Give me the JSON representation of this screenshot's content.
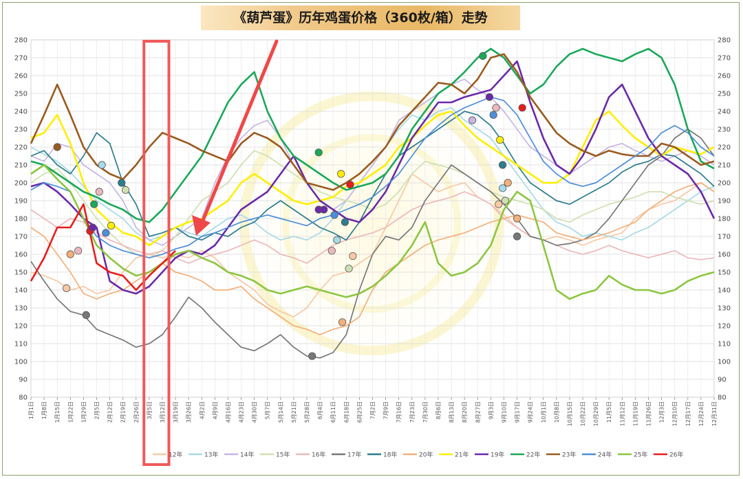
{
  "chart_data": {
    "type": "line",
    "title": "《葫芦蛋》历年鸡蛋价格（360枚/箱）走势",
    "xlabel": "",
    "ylabel": "",
    "ylim": [
      80,
      280
    ],
    "yticks": [
      80,
      90,
      100,
      110,
      120,
      130,
      140,
      150,
      160,
      170,
      180,
      190,
      200,
      210,
      220,
      230,
      240,
      250,
      260,
      270,
      280
    ],
    "x_tick_labels": [
      "1月1日",
      "1月8日",
      "1月15日",
      "1月22日",
      "1月29日",
      "2月5日",
      "2月12日",
      "2月19日",
      "2月26日",
      "3月5日",
      "3月12日",
      "3月19日",
      "3月26日",
      "4月2日",
      "4月9日",
      "4月16日",
      "4月23日",
      "4月30日",
      "5月7日",
      "5月14日",
      "5月21日",
      "5月28日",
      "6月4日",
      "6月11日",
      "6月18日",
      "6月25日",
      "7月2日",
      "7月9日",
      "7月16日",
      "7月23日",
      "7月30日",
      "8月6日",
      "8月13日",
      "8月20日",
      "8月27日",
      "9月3日",
      "9月10日",
      "9月17日",
      "9月24日",
      "10月1日",
      "10月8日",
      "10月15日",
      "10月22日",
      "10月29日",
      "11月5日",
      "11月12日",
      "11月19日",
      "11月26日",
      "12月3日",
      "12月10日",
      "12月17日",
      "12月24日",
      "12月31日"
    ],
    "legend_position": "bottom",
    "highlight_box": {
      "from_week": 8.6,
      "to_week": 10.5
    },
    "series": [
      {
        "name": "12年",
        "color": "#f7c9a6",
        "values": [
          150,
          148,
          145,
          140,
          142,
          138,
          140,
          150,
          158,
          160,
          158,
          160,
          158,
          162,
          158,
          150,
          145,
          140,
          132,
          128,
          125,
          130,
          140,
          148,
          150,
          155,
          160,
          175,
          190,
          205,
          200,
          195,
          198,
          200,
          192,
          188,
          182,
          175,
          170,
          168,
          170,
          168,
          165,
          168,
          170,
          172,
          180,
          185,
          188,
          190,
          195,
          200,
          195
        ]
      },
      {
        "name": "13年",
        "color": "#a9d9e6",
        "values": [
          220,
          216,
          212,
          206,
          198,
          190,
          185,
          180,
          172,
          168,
          170,
          175,
          172,
          170,
          175,
          180,
          182,
          178,
          172,
          168,
          170,
          168,
          172,
          180,
          190,
          200,
          210,
          220,
          230,
          238,
          235,
          240,
          242,
          235,
          230,
          225,
          215,
          205,
          195,
          185,
          178,
          175,
          170,
          172,
          170,
          168,
          172,
          175,
          180,
          185,
          190,
          195,
          198
        ]
      },
      {
        "name": "14年",
        "color": "#c8b6e2",
        "values": [
          215,
          212,
          222,
          220,
          210,
          205,
          200,
          190,
          175,
          168,
          165,
          170,
          175,
          180,
          200,
          215,
          225,
          232,
          235,
          225,
          210,
          200,
          190,
          185,
          190,
          200,
          210,
          220,
          235,
          240,
          245,
          250,
          255,
          258,
          252,
          248,
          240,
          230,
          220,
          215,
          210,
          205,
          210,
          215,
          220,
          222,
          218,
          215,
          212,
          215,
          218,
          215,
          210
        ]
      },
      {
        "name": "15年",
        "color": "#cfe0b0",
        "values": [
          200,
          205,
          208,
          200,
          190,
          180,
          172,
          165,
          160,
          158,
          162,
          170,
          180,
          190,
          195,
          200,
          210,
          218,
          215,
          210,
          205,
          200,
          195,
          192,
          190,
          188,
          185,
          188,
          195,
          205,
          212,
          210,
          208,
          205,
          200,
          195,
          192,
          190,
          188,
          185,
          180,
          178,
          182,
          185,
          188,
          190,
          192,
          195,
          195,
          192,
          190,
          188,
          190
        ]
      },
      {
        "name": "16年",
        "color": "#ebb9bd",
        "values": [
          185,
          180,
          175,
          180,
          178,
          172,
          168,
          165,
          162,
          160,
          162,
          158,
          155,
          158,
          160,
          162,
          165,
          168,
          165,
          160,
          158,
          155,
          160,
          165,
          168,
          170,
          172,
          175,
          180,
          185,
          188,
          190,
          192,
          195,
          192,
          188,
          180,
          175,
          170,
          168,
          165,
          162,
          160,
          162,
          165,
          162,
          160,
          158,
          160,
          162,
          158,
          157,
          158
        ]
      },
      {
        "name": "17年",
        "color": "#777777",
        "values": [
          156,
          145,
          135,
          128,
          126,
          118,
          115,
          112,
          108,
          110,
          115,
          125,
          136,
          130,
          122,
          115,
          108,
          106,
          110,
          115,
          108,
          103,
          102,
          105,
          115,
          140,
          160,
          170,
          168,
          175,
          190,
          200,
          210,
          205,
          200,
          195,
          188,
          180,
          170,
          168,
          165,
          166,
          168,
          172,
          180,
          190,
          200,
          210,
          215,
          225,
          230,
          225,
          215
        ]
      },
      {
        "name": "18年",
        "color": "#2e7d8c",
        "values": [
          215,
          218,
          210,
          205,
          215,
          228,
          222,
          200,
          188,
          170,
          172,
          175,
          170,
          168,
          172,
          170,
          175,
          178,
          185,
          190,
          185,
          180,
          175,
          172,
          168,
          178,
          192,
          205,
          215,
          220,
          225,
          230,
          235,
          240,
          238,
          232,
          222,
          210,
          200,
          195,
          190,
          188,
          192,
          196,
          200,
          206,
          210,
          212,
          216,
          215,
          210,
          205,
          198
        ]
      },
      {
        "name": "20年",
        "color": "#f3b07a",
        "values": [
          175,
          170,
          160,
          150,
          138,
          135,
          138,
          140,
          145,
          150,
          155,
          150,
          148,
          145,
          140,
          140,
          142,
          135,
          130,
          125,
          120,
          118,
          115,
          118,
          120,
          125,
          140,
          150,
          155,
          160,
          165,
          168,
          170,
          172,
          175,
          178,
          180,
          182,
          180,
          178,
          172,
          170,
          168,
          170,
          172,
          175,
          178,
          185,
          190,
          195,
          198,
          200,
          195
        ]
      },
      {
        "name": "21年",
        "color": "#ffee00",
        "values": [
          225,
          228,
          238,
          222,
          200,
          185,
          178,
          172,
          170,
          165,
          170,
          175,
          178,
          180,
          185,
          190,
          200,
          205,
          200,
          195,
          190,
          188,
          190,
          192,
          198,
          200,
          205,
          210,
          220,
          225,
          232,
          238,
          240,
          232,
          225,
          220,
          215,
          210,
          205,
          200,
          200,
          205,
          220,
          235,
          240,
          232,
          225,
          220,
          215,
          220,
          218,
          216,
          220
        ]
      },
      {
        "name": "19年",
        "color": "#6a2aa8",
        "values": [
          198,
          200,
          195,
          188,
          180,
          175,
          145,
          140,
          138,
          142,
          150,
          158,
          162,
          160,
          165,
          175,
          185,
          190,
          195,
          205,
          215,
          200,
          190,
          185,
          180,
          178,
          185,
          195,
          210,
          225,
          235,
          245,
          245,
          248,
          250,
          252,
          260,
          268,
          245,
          225,
          210,
          205,
          215,
          230,
          248,
          255,
          240,
          225,
          215,
          210,
          205,
          195,
          180
        ]
      },
      {
        "name": "22年",
        "color": "#1aa85a",
        "values": [
          212,
          210,
          205,
          200,
          195,
          192,
          188,
          185,
          180,
          178,
          185,
          195,
          205,
          215,
          230,
          245,
          255,
          262,
          240,
          225,
          215,
          210,
          205,
          200,
          196,
          198,
          200,
          205,
          215,
          230,
          240,
          250,
          255,
          262,
          270,
          275,
          270,
          260,
          250,
          255,
          265,
          272,
          275,
          272,
          270,
          268,
          272,
          275,
          270,
          255,
          230,
          212,
          208
        ]
      },
      {
        "name": "23年",
        "color": "#9a5a1e",
        "values": [
          222,
          238,
          255,
          238,
          220,
          210,
          205,
          202,
          210,
          220,
          228,
          225,
          222,
          218,
          215,
          212,
          222,
          228,
          225,
          220,
          210,
          200,
          198,
          196,
          200,
          205,
          212,
          220,
          232,
          240,
          248,
          256,
          255,
          250,
          258,
          270,
          272,
          262,
          248,
          238,
          228,
          222,
          218,
          215,
          218,
          216,
          215,
          215,
          222,
          220,
          215,
          210,
          212
        ]
      },
      {
        "name": "24年",
        "color": "#4d8ed8",
        "values": [
          196,
          200,
          198,
          195,
          180,
          170,
          165,
          162,
          160,
          158,
          160,
          163,
          165,
          170,
          172,
          175,
          178,
          180,
          182,
          180,
          178,
          176,
          180,
          182,
          185,
          188,
          192,
          198,
          205,
          215,
          225,
          232,
          238,
          242,
          245,
          248,
          246,
          238,
          225,
          212,
          205,
          200,
          198,
          200,
          205,
          210,
          215,
          220,
          228,
          232,
          228,
          220,
          215
        ]
      },
      {
        "name": "25年",
        "color": "#8cc63f",
        "values": [
          205,
          210,
          202,
          195,
          180,
          165,
          158,
          152,
          148,
          150,
          155,
          160,
          162,
          158,
          155,
          150,
          148,
          145,
          140,
          138,
          140,
          142,
          140,
          138,
          136,
          138,
          142,
          148,
          155,
          165,
          178,
          155,
          148,
          150,
          155,
          165,
          185,
          195,
          190,
          165,
          140,
          135,
          138,
          140,
          148,
          143,
          140,
          140,
          138,
          140,
          145,
          148,
          150
        ]
      },
      {
        "name": "26年",
        "color": "#e81c1c",
        "values": [
          145,
          158,
          175,
          175,
          188,
          155,
          150,
          148,
          140,
          148,
          155,
          162,
          null,
          null,
          null,
          null,
          null,
          null,
          null,
          null,
          null,
          null,
          null,
          null,
          null,
          null,
          null,
          null,
          null,
          null,
          null,
          null,
          null,
          null,
          null,
          null,
          null,
          null,
          null,
          null,
          null,
          null,
          null,
          null,
          null,
          null,
          null,
          null,
          null,
          null,
          null,
          null,
          null
        ]
      }
    ],
    "markers": [
      {
        "series": "23年",
        "week": 2.0,
        "value": 220
      },
      {
        "series": "12年",
        "week": 2.7,
        "value": 141
      },
      {
        "series": "20年",
        "week": 3.0,
        "value": 160
      },
      {
        "series": "16年",
        "week": 3.6,
        "value": 162
      },
      {
        "series": "26年",
        "week": 4.5,
        "value": 173
      },
      {
        "series": "17年",
        "week": 4.2,
        "value": 126
      },
      {
        "series": "22年",
        "week": 4.8,
        "value": 188
      },
      {
        "series": "19年",
        "week": 4.7,
        "value": 175
      },
      {
        "series": "16年",
        "week": 5.2,
        "value": 195
      },
      {
        "series": "13年",
        "week": 5.4,
        "value": 210
      },
      {
        "series": "24年",
        "week": 5.7,
        "value": 172
      },
      {
        "series": "21年",
        "week": 6.1,
        "value": 176
      },
      {
        "series": "18年",
        "week": 6.9,
        "value": 200
      },
      {
        "series": "15年",
        "week": 7.2,
        "value": 196
      },
      {
        "series": "17年",
        "week": 21.4,
        "value": 103
      },
      {
        "series": "19年",
        "week": 21.9,
        "value": 185
      },
      {
        "series": "19年",
        "week": 22.3,
        "value": 185
      },
      {
        "series": "22年",
        "week": 21.9,
        "value": 217
      },
      {
        "series": "24年",
        "week": 23.1,
        "value": 182
      },
      {
        "series": "21年",
        "week": 23.6,
        "value": 205
      },
      {
        "series": "16年",
        "week": 22.9,
        "value": 162
      },
      {
        "series": "13年",
        "week": 23.3,
        "value": 168
      },
      {
        "series": "18年",
        "week": 23.9,
        "value": 178
      },
      {
        "series": "20年",
        "week": 23.7,
        "value": 122
      },
      {
        "series": "15年",
        "week": 24.2,
        "value": 152
      },
      {
        "series": "12年",
        "week": 24.5,
        "value": 159
      },
      {
        "series": "26年",
        "week": 24.3,
        "value": 199
      },
      {
        "series": "14年",
        "week": 33.6,
        "value": 235
      },
      {
        "series": "22年",
        "week": 34.4,
        "value": 271
      },
      {
        "series": "19年",
        "week": 34.9,
        "value": 248
      },
      {
        "series": "24年",
        "week": 35.2,
        "value": 238
      },
      {
        "series": "16年",
        "week": 35.4,
        "value": 242
      },
      {
        "series": "21年",
        "week": 35.7,
        "value": 224
      },
      {
        "series": "18年",
        "week": 35.9,
        "value": 210
      },
      {
        "series": "13年",
        "week": 35.9,
        "value": 197
      },
      {
        "series": "20年",
        "week": 36.3,
        "value": 200
      },
      {
        "series": "15年",
        "week": 36.1,
        "value": 190
      },
      {
        "series": "12年",
        "week": 35.6,
        "value": 188
      },
      {
        "series": "20年",
        "week": 37.0,
        "value": 180
      },
      {
        "series": "17年",
        "week": 37.0,
        "value": 170
      },
      {
        "series": "26年",
        "week": 37.4,
        "value": 242
      }
    ]
  }
}
